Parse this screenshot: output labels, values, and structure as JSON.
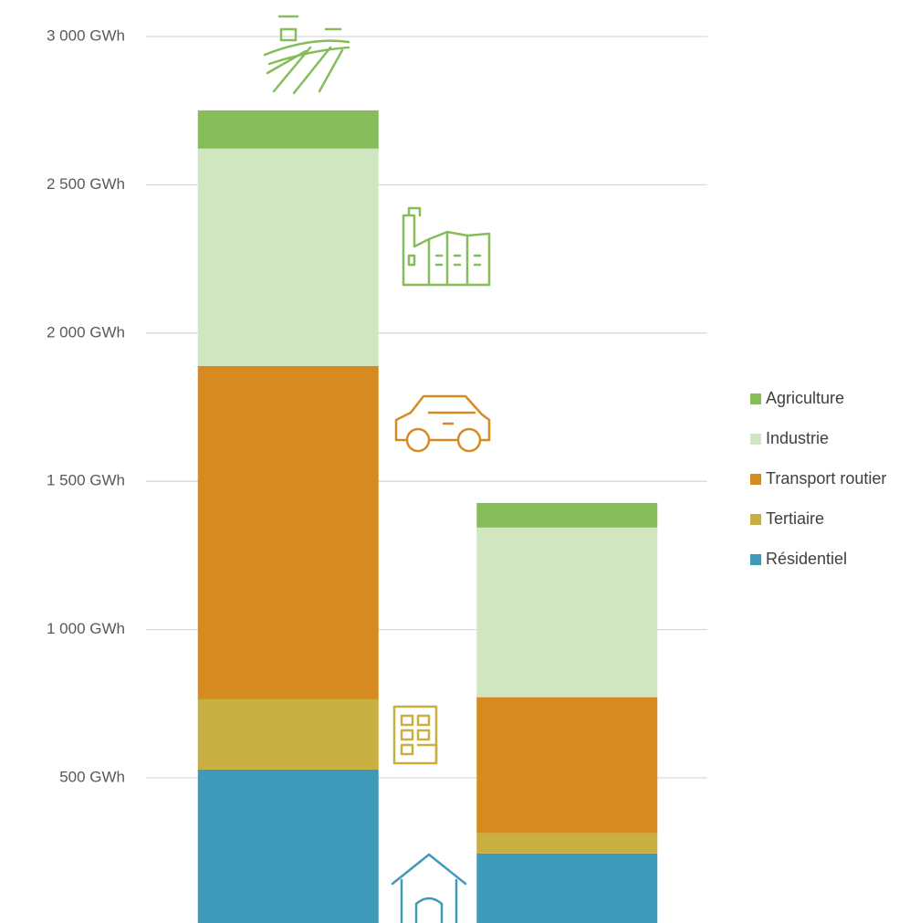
{
  "chart_data": {
    "type": "stacked_bar",
    "categories": [
      null,
      null
    ],
    "series": [
      {
        "name": "Résidentiel",
        "color": "#3e9ab8",
        "values": [
          528,
          245
        ]
      },
      {
        "name": "Tertiaire",
        "color": "#c8b040",
        "values": [
          237,
          68
        ]
      },
      {
        "name": "Transport routier",
        "color": "#d68b20",
        "values": [
          1124,
          459
        ]
      },
      {
        "name": "Industrie",
        "color": "#d0e6c0",
        "values": [
          733,
          572
        ]
      },
      {
        "name": "Agriculture",
        "color": "#86bd5a",
        "values": [
          129,
          83
        ]
      }
    ],
    "ylim": [
      0,
      3000
    ],
    "yticks": [
      {
        "value": 500,
        "label": "500  GWh"
      },
      {
        "value": 1000,
        "label": "1 000  GWh"
      },
      {
        "value": 1500,
        "label": "1 500  GWh"
      },
      {
        "value": 2000,
        "label": "2 000  GWh"
      },
      {
        "value": 2500,
        "label": "2 500  GWh"
      },
      {
        "value": 3000,
        "label": "3 000  GWh"
      }
    ],
    "grid": true,
    "legend": "right"
  }
}
